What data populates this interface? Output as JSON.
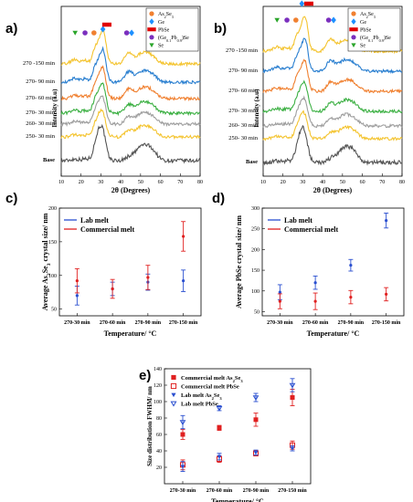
{
  "chart_data": [
    {
      "panel": "a)",
      "type": "line",
      "xlabel": "2θ (Degrees)",
      "ylabel": "Intensity (a.u)",
      "xticks": [
        "10",
        "20",
        "30",
        "40",
        "50",
        "60",
        "70",
        "80"
      ],
      "xlim": [
        10,
        80
      ],
      "series": [
        {
          "name": "Base",
          "color": "#555555"
        },
        {
          "name": "250- 30 min",
          "color": "#f4c430"
        },
        {
          "name": "260- 30 min",
          "color": "#9e9e9e"
        },
        {
          "name": "270- 30 min",
          "color": "#3cb043"
        },
        {
          "name": "270- 60 min",
          "color": "#f08030"
        },
        {
          "name": "270- 90 min",
          "color": "#2a7fd0"
        },
        {
          "name": "270 -150 min",
          "color": "#f4c430"
        }
      ],
      "legend": [
        {
          "label": "As",
          "sub1": "2",
          "mid": "Se",
          "sub2": "3",
          "tail": "",
          "marker": "circle",
          "color": "#f08030"
        },
        {
          "label": "Ge",
          "sub1": "",
          "mid": "",
          "sub2": "",
          "tail": "",
          "marker": "diamond",
          "color": "#1e90ff"
        },
        {
          "label": "PbSe",
          "sub1": "",
          "mid": "",
          "sub2": "",
          "tail": "",
          "marker": "rect",
          "color": "#e00000"
        },
        {
          "label": "(Ge",
          "sub1": "0.1",
          "mid": "Pb",
          "sub2": "0.9",
          "tail": ")Se",
          "marker": "circle",
          "color": "#7b2fbe"
        },
        {
          "label": "Se",
          "sub1": "",
          "mid": "",
          "sub2": "",
          "tail": "",
          "marker": "triangle",
          "color": "#2aa52a"
        }
      ]
    },
    {
      "panel": "b)",
      "type": "line",
      "xlabel": "2θ (Degrees)",
      "ylabel": "Intensity (a.u)",
      "xticks": [
        "10",
        "20",
        "30",
        "40",
        "50",
        "60",
        "70",
        "80"
      ],
      "xlim": [
        10,
        80
      ],
      "series": [
        {
          "name": "Base",
          "color": "#555555"
        },
        {
          "name": "250- 30 min",
          "color": "#f4c430"
        },
        {
          "name": "260- 30 min",
          "color": "#9e9e9e"
        },
        {
          "name": "270- 30 min",
          "color": "#3cb043"
        },
        {
          "name": "270- 60 min",
          "color": "#f08030"
        },
        {
          "name": "270- 90 min",
          "color": "#2a7fd0"
        },
        {
          "name": "270 -150 min",
          "color": "#f4c430"
        }
      ],
      "legend": [
        {
          "label": "As",
          "sub1": "2",
          "mid": "Se",
          "sub2": "3",
          "tail": "",
          "marker": "circle",
          "color": "#f08030"
        },
        {
          "label": "Ge",
          "sub1": "",
          "mid": "",
          "sub2": "",
          "tail": "",
          "marker": "diamond",
          "color": "#1e90ff"
        },
        {
          "label": "PbSe",
          "sub1": "",
          "mid": "",
          "sub2": "",
          "tail": "",
          "marker": "rect",
          "color": "#e00000"
        },
        {
          "label": "(Ge",
          "sub1": "0.1",
          "mid": "Pb",
          "sub2": "0.9",
          "tail": ")Se",
          "marker": "circle",
          "color": "#7b2fbe"
        },
        {
          "label": "Se",
          "sub1": "",
          "mid": "",
          "sub2": "",
          "tail": "",
          "marker": "triangle",
          "color": "#2aa52a"
        }
      ]
    },
    {
      "panel": "c)",
      "type": "scatter",
      "xlabel": "Temperature/ °C",
      "ylabel_parts": [
        "Average As",
        "2",
        "Se",
        "3",
        " crystal size/ nm"
      ],
      "categories": [
        "270-30 min",
        "270-60 min",
        "270-90 min",
        "270-150 min"
      ],
      "ylim": [
        40,
        200
      ],
      "yticks": [
        50,
        100,
        150,
        200
      ],
      "series": [
        {
          "name": "Lab melt",
          "color": "#2a4fd0",
          "values": [
            70,
            80,
            90,
            92
          ],
          "errors": [
            14,
            10,
            12,
            16
          ]
        },
        {
          "name": "Commercial melt",
          "color": "#e02020",
          "values": [
            92,
            80,
            97,
            158
          ],
          "errors": [
            18,
            14,
            18,
            22
          ]
        }
      ]
    },
    {
      "panel": "d)",
      "type": "scatter",
      "xlabel": "Temperature/ °C",
      "ylabel": "Average PbSe crystal size/ nm",
      "categories": [
        "270-30 min",
        "270-60 min",
        "270-90 min",
        "270-150 min"
      ],
      "ylim": [
        40,
        300
      ],
      "yticks": [
        50,
        100,
        150,
        200,
        250,
        300
      ],
      "series": [
        {
          "name": "Lab melt",
          "color": "#2a4fd0",
          "values": [
            97,
            120,
            162,
            270
          ],
          "errors": [
            18,
            16,
            14,
            18
          ]
        },
        {
          "name": "Commercial melt",
          "color": "#e02020",
          "values": [
            75,
            75,
            85,
            92
          ],
          "errors": [
            18,
            20,
            16,
            16
          ]
        }
      ]
    },
    {
      "panel": "e)",
      "type": "scatter",
      "xlabel": "Temperature/ °C",
      "ylabel": "Size distribution FWHM/ nm",
      "categories": [
        "270-30 min",
        "270-60 min",
        "270-90 min",
        "270-150 min"
      ],
      "ylim": [
        0,
        140
      ],
      "yticks": [
        20,
        40,
        60,
        80,
        100,
        120,
        140
      ],
      "series": [
        {
          "name_parts": [
            "Commercial melt As",
            "2",
            "Se",
            "3"
          ],
          "color": "#e02020",
          "marker": "square-filled",
          "values": [
            60,
            68,
            78,
            105
          ],
          "errors": [
            6,
            3,
            8,
            10
          ]
        },
        {
          "name_parts": [
            "Commercial melt PbSe",
            "",
            "",
            ""
          ],
          "color": "#e02020",
          "marker": "square-open",
          "values": [
            23,
            30,
            37,
            47
          ],
          "errors": [
            6,
            4,
            3,
            5
          ]
        },
        {
          "name_parts": [
            "Lab melt As",
            "2",
            "Se",
            "3"
          ],
          "color": "#2a4fd0",
          "marker": "triangle-filled",
          "values": [
            21,
            33,
            38,
            43
          ],
          "errors": [
            6,
            4,
            3,
            3
          ]
        },
        {
          "name_parts": [
            "Lab melt PbSe",
            "",
            "",
            ""
          ],
          "color": "#2a4fd0",
          "marker": "triangle-open",
          "values": [
            75,
            92,
            105,
            120
          ],
          "errors": [
            8,
            3,
            5,
            8
          ]
        }
      ]
    }
  ]
}
